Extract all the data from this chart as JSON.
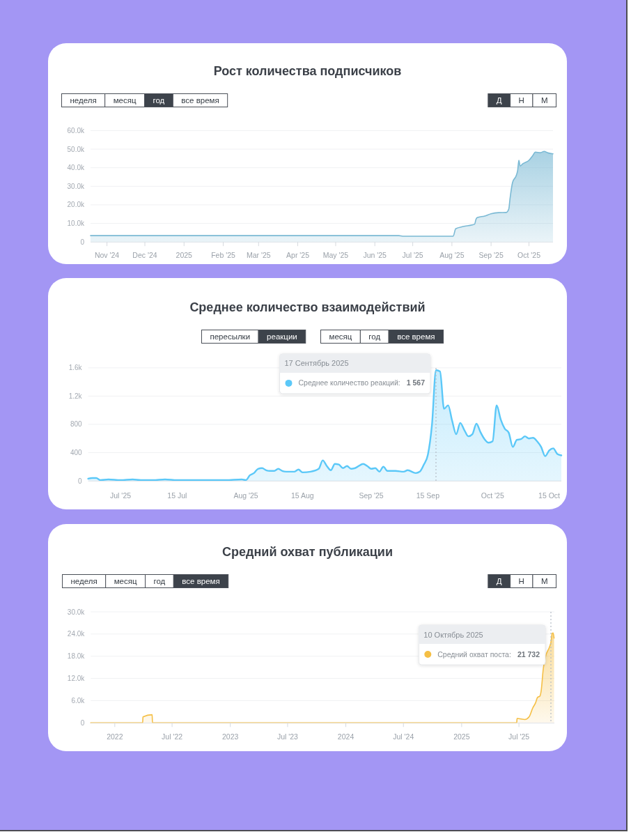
{
  "chart_data": [
    {
      "type": "area",
      "title": "Рост количества подписчиков",
      "annotations": [
        "неделя",
        "месяц",
        "год",
        "все время",
        "Д",
        "Н",
        "М"
      ],
      "x": [
        "2024-10-19",
        "2025-06-20",
        "2025-06-23",
        "2025-08-02",
        "2025-08-04",
        "2025-08-10",
        "2025-08-17",
        "2025-08-19",
        "2025-08-20",
        "2025-08-21",
        "2025-08-27",
        "2025-09-01",
        "2025-09-07",
        "2025-09-13",
        "2025-09-15",
        "2025-09-16",
        "2025-09-18",
        "2025-09-21",
        "2025-09-22",
        "2025-09-23",
        "2025-09-24",
        "2025-09-26",
        "2025-10-01",
        "2025-10-04",
        "2025-10-06",
        "2025-10-10",
        "2025-10-13",
        "2025-10-16",
        "2025-10-20"
      ],
      "values": [
        3400,
        3400,
        3100,
        3100,
        7100,
        8300,
        9200,
        9600,
        12100,
        13100,
        14000,
        15200,
        15800,
        15900,
        17700,
        23400,
        32100,
        35900,
        38400,
        44000,
        40900,
        42100,
        44000,
        46500,
        48400,
        48100,
        48800,
        48000,
        47500
      ],
      "color": "#7ab9d4",
      "xlim": [
        "2024-10-19",
        "2025-10-20"
      ],
      "xticks": [
        {
          "value": "2024-11-01",
          "label": "Nov '24"
        },
        {
          "value": "2024-12-01",
          "label": "Dec '24"
        },
        {
          "value": "2025-01-01",
          "label": "2025"
        },
        {
          "value": "2025-02-01",
          "label": "Feb '25"
        },
        {
          "value": "2025-03-01",
          "label": "Mar '25"
        },
        {
          "value": "2025-04-01",
          "label": "Apr '25"
        },
        {
          "value": "2025-05-01",
          "label": "May '25"
        },
        {
          "value": "2025-06-01",
          "label": "Jun '25"
        },
        {
          "value": "2025-07-01",
          "label": "Jul '25"
        },
        {
          "value": "2025-08-01",
          "label": "Aug '25"
        },
        {
          "value": "2025-09-01",
          "label": "Sep '25"
        },
        {
          "value": "2025-10-01",
          "label": "Oct '25"
        }
      ],
      "ylim": [
        0,
        60000
      ],
      "yticks": [
        0,
        {
          "value": 10000,
          "label": "10.0k"
        },
        {
          "value": 20000,
          "label": "20.0k"
        },
        {
          "value": 30000,
          "label": "30.0k"
        },
        {
          "value": 40000,
          "label": "40.0k"
        },
        {
          "value": 50000,
          "label": "50.0k"
        },
        {
          "value": 60000,
          "label": "60.0k"
        }
      ],
      "grid": "y"
    },
    {
      "type": "area",
      "title": "Среднее количество взаимодействий",
      "annotations": [
        "пересылки",
        "реакции",
        "месяц",
        "год",
        "все время",
        "17 Сентябрь 2025"
      ],
      "x": [
        "2025-06-23",
        "2025-06-24",
        "2025-06-25",
        "2025-06-26",
        "2025-06-28",
        "2025-07-01",
        "2025-07-04",
        "2025-07-06",
        "2025-07-09",
        "2025-07-12",
        "2025-07-15",
        "2025-07-19",
        "2025-07-23",
        "2025-07-27",
        "2025-07-31",
        "2025-08-01",
        "2025-08-02",
        "2025-08-03",
        "2025-08-04",
        "2025-08-05",
        "2025-08-06",
        "2025-08-07",
        "2025-08-08",
        "2025-08-09",
        "2025-08-10",
        "2025-08-11",
        "2025-08-13",
        "2025-08-14",
        "2025-08-15",
        "2025-08-17",
        "2025-08-19",
        "2025-08-20",
        "2025-08-21",
        "2025-08-22",
        "2025-08-23",
        "2025-08-24",
        "2025-08-25",
        "2025-08-26",
        "2025-08-27",
        "2025-08-28",
        "2025-08-30",
        "2025-08-31",
        "2025-09-01",
        "2025-09-02",
        "2025-09-03",
        "2025-09-04",
        "2025-09-05",
        "2025-09-07",
        "2025-09-09",
        "2025-09-10",
        "2025-09-12",
        "2025-09-13",
        "2025-09-14",
        "2025-09-15",
        "2025-09-16",
        "2025-09-17",
        "2025-09-18",
        "2025-09-19",
        "2025-09-20",
        "2025-09-21",
        "2025-09-22",
        "2025-09-23",
        "2025-09-24",
        "2025-09-25",
        "2025-09-26",
        "2025-09-27",
        "2025-09-28",
        "2025-09-29",
        "2025-09-30",
        "2025-10-01",
        "2025-10-02",
        "2025-10-03",
        "2025-10-04",
        "2025-10-05",
        "2025-10-06",
        "2025-10-07",
        "2025-10-08",
        "2025-10-09",
        "2025-10-10",
        "2025-10-11",
        "2025-10-12",
        "2025-10-13",
        "2025-10-14",
        "2025-10-15",
        "2025-10-16",
        "2025-10-17",
        "2025-10-18"
      ],
      "series": [
        {
          "name": "Среднее количество реакций:",
          "color": "#5bc8f8",
          "values": [
            30,
            40,
            40,
            10,
            20,
            10,
            20,
            10,
            10,
            20,
            10,
            10,
            10,
            10,
            20,
            10,
            80,
            110,
            170,
            180,
            150,
            140,
            140,
            170,
            140,
            130,
            130,
            160,
            120,
            130,
            170,
            290,
            210,
            150,
            240,
            230,
            180,
            210,
            170,
            180,
            240,
            210,
            170,
            180,
            130,
            200,
            140,
            140,
            130,
            150,
            110,
            130,
            230,
            370,
            790,
            1567,
            1550,
            1020,
            1070,
            850,
            660,
            820,
            720,
            630,
            660,
            810,
            690,
            590,
            540,
            560,
            1070,
            870,
            740,
            680,
            480,
            580,
            590,
            630,
            600,
            610,
            560,
            480,
            350,
            430,
            460,
            380,
            360
          ],
          "value_labels": [
            null,
            null,
            null,
            null,
            null,
            null,
            null,
            null,
            null,
            null,
            null,
            null,
            null,
            null,
            null,
            null,
            null,
            null,
            null,
            null,
            null,
            null,
            null,
            null,
            null,
            null,
            null,
            null,
            null,
            null,
            null,
            null,
            null,
            null,
            null,
            null,
            null,
            null,
            null,
            null,
            null,
            null,
            null,
            null,
            null,
            null,
            null,
            null,
            null,
            null,
            null,
            null,
            null,
            null,
            null,
            "1 567",
            null,
            null,
            null,
            null,
            null,
            null,
            null,
            null,
            null,
            null,
            null,
            null,
            null,
            null,
            null,
            null,
            null,
            null,
            null,
            null,
            null,
            null,
            null,
            null,
            null,
            null,
            null,
            null,
            null,
            null,
            null
          ]
        }
      ],
      "xlim": [
        "2025-06-23",
        "2025-10-18"
      ],
      "xticks": [
        {
          "value": "2025-07-01",
          "label": "Jul '25"
        },
        {
          "value": "2025-07-15",
          "label": "15 Jul"
        },
        {
          "value": "2025-08-01",
          "label": "Aug '25"
        },
        {
          "value": "2025-08-15",
          "label": "15 Aug"
        },
        {
          "value": "2025-09-01",
          "label": "Sep '25"
        },
        {
          "value": "2025-09-15",
          "label": "15 Sep"
        },
        {
          "value": "2025-10-01",
          "label": "Oct '25"
        },
        {
          "value": "2025-10-15",
          "label": "15 Oct"
        }
      ],
      "ylim": [
        0,
        1600
      ],
      "yticks": [
        0,
        400,
        800,
        {
          "value": 1200,
          "label": "1.2k"
        },
        {
          "value": 1600,
          "label": "1.6k"
        }
      ],
      "grid": "y",
      "legend": "top",
      "ref_lines": [
        {
          "axis": "x",
          "value": "2025-09-17",
          "label": null,
          "line_style": "dotted",
          "color": "#b4bcc5"
        }
      ]
    },
    {
      "type": "area",
      "title": "Средний охват публикации",
      "annotations": [
        "неделя",
        "месяц",
        "год",
        "все время",
        "Д",
        "Н",
        "М",
        "10 Октябрь 2025"
      ],
      "x": [
        "2021-10-17",
        "2022-03-30",
        "2022-03-31",
        "2022-04-29",
        "2022-04-30",
        "2025-06-24",
        "2025-06-25",
        "2025-07-20",
        "2025-08-02",
        "2025-08-14",
        "2025-08-22",
        "2025-08-29",
        "2025-09-05",
        "2025-09-09",
        "2025-09-16",
        "2025-09-23",
        "2025-10-05",
        "2025-10-10",
        "2025-10-14",
        "2025-10-17",
        "2025-10-20"
      ],
      "series": [
        {
          "name": "Средний охват поста:",
          "color": "#f5bf45",
          "values": [
            0,
            0,
            1600,
            2200,
            0,
            0,
            1200,
            900,
            1600,
            4100,
            5300,
            6900,
            7200,
            8500,
            14700,
            17900,
            20400,
            21732,
            24200,
            24300,
            22900
          ],
          "value_labels": [
            null,
            null,
            null,
            null,
            null,
            null,
            null,
            null,
            null,
            null,
            null,
            null,
            null,
            null,
            null,
            null,
            null,
            "21 732",
            null,
            null,
            null
          ]
        }
      ],
      "xlim": [
        "2021-10-17",
        "2025-10-21"
      ],
      "xticks": [
        {
          "value": "2022-01-01",
          "label": "2022"
        },
        {
          "value": "2022-07-01",
          "label": "Jul '22"
        },
        {
          "value": "2023-01-01",
          "label": "2023"
        },
        {
          "value": "2023-07-01",
          "label": "Jul '23"
        },
        {
          "value": "2024-01-01",
          "label": "2024"
        },
        {
          "value": "2024-07-01",
          "label": "Jul '24"
        },
        {
          "value": "2025-01-01",
          "label": "2025"
        },
        {
          "value": "2025-07-01",
          "label": "Jul '25"
        }
      ],
      "ylim": [
        0,
        30000
      ],
      "yticks": [
        0,
        {
          "value": 6000,
          "label": "6.0k"
        },
        {
          "value": 12000,
          "label": "12.0k"
        },
        {
          "value": 18000,
          "label": "18.0k"
        },
        {
          "value": 24000,
          "label": "24.0k"
        },
        {
          "value": 30000,
          "label": "30.0k"
        }
      ],
      "grid": "y",
      "legend": "top right",
      "ref_lines": [
        {
          "axis": "x",
          "value": "2025-10-10",
          "label": null,
          "line_style": "dotted",
          "color": "#b4bcc5"
        }
      ]
    }
  ]
}
